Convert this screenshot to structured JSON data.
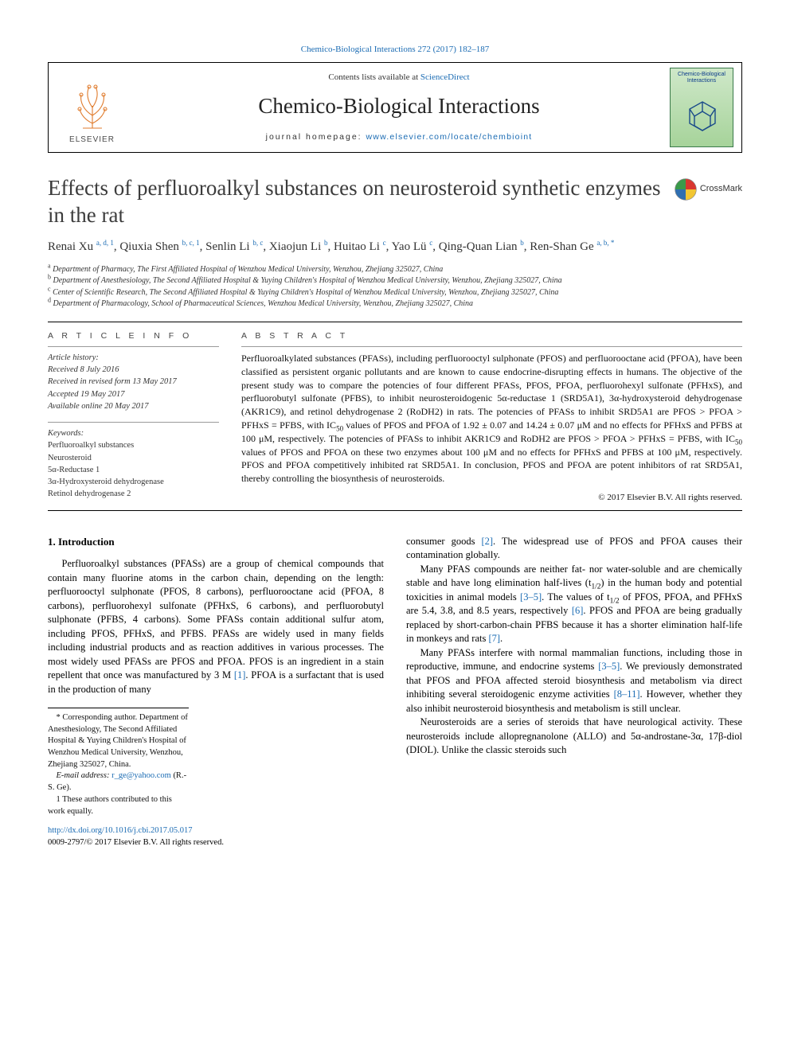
{
  "top_link": "Chemico-Biological Interactions 272 (2017) 182–187",
  "header": {
    "contents_text": "Contents lists available at ",
    "contents_link": "ScienceDirect",
    "journal": "Chemico-Biological Interactions",
    "homepage_label": "journal homepage: ",
    "homepage_url": "www.elsevier.com/locate/chembioint",
    "publisher": "ELSEVIER",
    "cover_title": "Chemico-Biological Interactions"
  },
  "title": "Effects of perfluoroalkyl substances on neurosteroid synthetic enzymes in the rat",
  "crossmark": "CrossMark",
  "authors_html": "Renai Xu <sup>a, d, 1</sup>, Qiuxia Shen <sup>b, c, 1</sup>, Senlin Li <sup>b, c</sup>, Xiaojun Li <sup>b</sup>, Huitao Li <sup>c</sup>, Yao Lü <sup>c</sup>, Qing-Quan Lian <sup>b</sup>, Ren-Shan Ge <sup>a, b, *</sup>",
  "affiliations": [
    {
      "tag": "a",
      "text": "Department of Pharmacy, The First Affiliated Hospital of Wenzhou Medical University, Wenzhou, Zhejiang 325027, China"
    },
    {
      "tag": "b",
      "text": "Department of Anesthesiology, The Second Affiliated Hospital & Yuying Children's Hospital of Wenzhou Medical University, Wenzhou, Zhejiang 325027, China"
    },
    {
      "tag": "c",
      "text": "Center of Scientific Research, The Second Affiliated Hospital & Yuying Children's Hospital of Wenzhou Medical University, Wenzhou, Zhejiang 325027, China"
    },
    {
      "tag": "d",
      "text": "Department of Pharmacology, School of Pharmaceutical Sciences, Wenzhou Medical University, Wenzhou, Zhejiang 325027, China"
    }
  ],
  "section_labels": {
    "info": "A R T I C L E  I N F O",
    "abstract": "A B S T R A C T"
  },
  "history": {
    "heading": "Article history:",
    "received": "Received 8 July 2016",
    "revised": "Received in revised form 13 May 2017",
    "accepted": "Accepted 19 May 2017",
    "online": "Available online 20 May 2017"
  },
  "keywords": {
    "heading": "Keywords:",
    "items": [
      "Perfluoroalkyl substances",
      "Neurosteroid",
      "5α-Reductase 1",
      "3α-Hydroxysteroid dehydrogenase",
      "Retinol dehydrogenase 2"
    ]
  },
  "abstract": "Perfluoroalkylated substances (PFASs), including perfluorooctyl sulphonate (PFOS) and perfluorooctane acid (PFOA), have been classified as persistent organic pollutants and are known to cause endocrine-disrupting effects in humans. The objective of the present study was to compare the potencies of four different PFASs, PFOS, PFOA, perfluorohexyl sulfonate (PFHxS), and perfluorobutyl sulfonate (PFBS), to inhibit neurosteroidogenic 5α-reductase 1 (SRD5A1), 3α-hydroxysteroid dehydrogenase (AKR1C9), and retinol dehydrogenase 2 (RoDH2) in rats. The potencies of PFASs to inhibit SRD5A1 are PFOS > PFOA > PFHxS = PFBS, with IC50 values of PFOS and PFOA of 1.92 ± 0.07 and 14.24 ± 0.07 μM and no effects for PFHxS and PFBS at 100 μM, respectively. The potencies of PFASs to inhibit AKR1C9 and RoDH2 are PFOS > PFOA > PFHxS = PFBS, with IC50 values of PFOS and PFOA on these two enzymes about 100 μM and no effects for PFHxS and PFBS at 100 μM, respectively. PFOS and PFOA competitively inhibited rat SRD5A1. In conclusion, PFOS and PFOA are potent inhibitors of rat SRD5A1, thereby controlling the biosynthesis of neurosteroids.",
  "abstract_copyright": "© 2017 Elsevier B.V. All rights reserved.",
  "intro_heading": "1. Introduction",
  "paragraphs": {
    "p1a": "Perfluoroalkyl substances (PFASs) are a group of chemical compounds that contain many fluorine atoms in the carbon chain, depending on the length: perfluorooctyl sulphonate (PFOS, 8 carbons), perfluorooctane acid (PFOA, 8 carbons), perfluorohexyl sulfonate (PFHxS, 6 carbons), and perfluorobutyl sulphonate (PFBS, 4 carbons). Some PFASs contain additional sulfur atom, including PFOS, PFHxS, and PFBS. PFASs are widely used in many fields including industrial products and as reaction additives in various processes. The most widely used PFASs are PFOS and PFOA. PFOS is an ingredient in a stain repellent that once was manufactured by 3 M ",
    "p1_ref1": "[1]",
    "p1b": ". PFOA is a surfactant that is used in the production of many",
    "p2a": "consumer goods ",
    "p2_ref": "[2]",
    "p2b": ". The widespread use of PFOS and PFOA causes their contamination globally.",
    "p3a": "Many PFAS compounds are neither fat- nor water-soluble and are chemically stable and have long elimination half-lives (t",
    "p3_half": "1/2",
    "p3b": ") in the human body and potential toxicities in animal models ",
    "p3_ref1": "[3–5]",
    "p3c": ". The values of t",
    "p3d": " of PFOS, PFOA, and PFHxS are 5.4, 3.8, and 8.5 years, respectively ",
    "p3_ref2": "[6]",
    "p3e": ". PFOS and PFOA are being gradually replaced by short-carbon-chain PFBS because it has a shorter elimination half-life in monkeys and rats ",
    "p3_ref3": "[7]",
    "p3f": ".",
    "p4a": "Many PFASs interfere with normal mammalian functions, including those in reproductive, immune, and endocrine systems ",
    "p4_ref1": "[3–5]",
    "p4b": ". We previously demonstrated that PFOS and PFOA affected steroid biosynthesis and metabolism via direct inhibiting several steroidogenic enzyme activities ",
    "p4_ref2": "[8–11]",
    "p4c": ". However, whether they also inhibit neurosteroid biosynthesis and metabolism is still unclear.",
    "p5": "Neurosteroids are a series of steroids that have neurological activity. These neurosteroids include allopregnanolone (ALLO) and 5α-androstane-3α, 17β-diol (DIOL). Unlike the classic steroids such"
  },
  "footnotes": {
    "corr": "* Corresponding author. Department of Anesthesiology, The Second Affiliated Hospital & Yuying Children's Hospital of Wenzhou Medical University, Wenzhou, Zhejiang 325027, China.",
    "email_label": "E-mail address: ",
    "email": "r_ge@yahoo.com",
    "email_tail": " (R.-S. Ge).",
    "equal": "1  These authors contributed to this work equally."
  },
  "doi": {
    "url": "http://dx.doi.org/10.1016/j.cbi.2017.05.017",
    "issn": "0009-2797/© 2017 Elsevier B.V. All rights reserved."
  },
  "colors": {
    "link": "#1a6bb3",
    "text": "#000000",
    "cover_bg_top": "#cfe8c9",
    "cover_bg_bottom": "#a6d39a",
    "cover_border": "#3a7a4a",
    "tree_orange": "#e07b2c",
    "crossmark_red": "#d9362f",
    "crossmark_blue": "#2f6fb1",
    "crossmark_yellow": "#f2c633",
    "crossmark_green": "#3a9a4a"
  },
  "fonts": {
    "body": "Times New Roman",
    "title_size_pt": 21,
    "journal_size_pt": 21,
    "authors_size_pt": 12,
    "affil_size_pt": 8,
    "abstract_size_pt": 9,
    "body_size_pt": 9.5
  }
}
